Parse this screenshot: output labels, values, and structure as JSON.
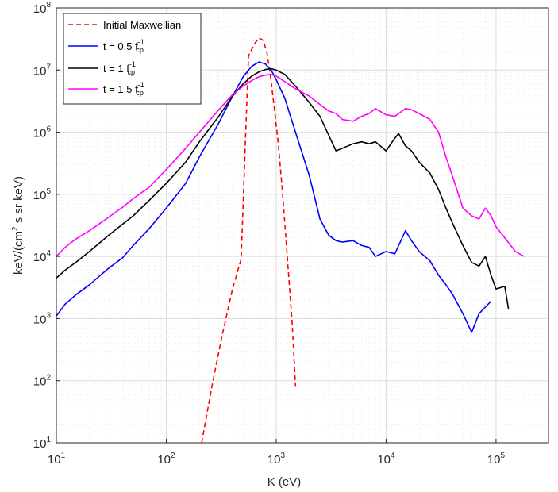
{
  "chart_data": {
    "type": "line",
    "xlabel": "K (eV)",
    "ylabel": {
      "pre": "keV/(cm",
      "sup": "2",
      "post": " s sr keV)"
    },
    "x_scale": "log",
    "y_scale": "log",
    "xlim": [
      10,
      300000
    ],
    "ylim": [
      10,
      100000000
    ],
    "x_ticks": [
      {
        "base": "10",
        "exp": "1",
        "value": 10
      },
      {
        "base": "10",
        "exp": "2",
        "value": 100
      },
      {
        "base": "10",
        "exp": "3",
        "value": 1000
      },
      {
        "base": "10",
        "exp": "4",
        "value": 10000
      },
      {
        "base": "10",
        "exp": "5",
        "value": 100000
      }
    ],
    "y_ticks": [
      {
        "base": "10",
        "exp": "1",
        "value": 10
      },
      {
        "base": "10",
        "exp": "2",
        "value": 100
      },
      {
        "base": "10",
        "exp": "3",
        "value": 1000
      },
      {
        "base": "10",
        "exp": "4",
        "value": 10000
      },
      {
        "base": "10",
        "exp": "5",
        "value": 100000
      },
      {
        "base": "10",
        "exp": "6",
        "value": 1000000
      },
      {
        "base": "10",
        "exp": "7",
        "value": 10000000
      },
      {
        "base": "10",
        "exp": "8",
        "value": 100000000
      }
    ],
    "grid": true,
    "minor_grid": true,
    "legend_position": "top-left",
    "series": [
      {
        "name": "Initial Maxwellian",
        "legend": {
          "main": "Initial Maxwellian",
          "sup": "",
          "sub": ""
        },
        "color": "#ff0000",
        "dash": true,
        "x": [
          210,
          260,
          320,
          400,
          480,
          560,
          640,
          700,
          760,
          820,
          880,
          960,
          1050,
          1150,
          1260,
          1400,
          1500
        ],
        "y": [
          10,
          80,
          500,
          3000,
          9000,
          17000000,
          27000000,
          33000000,
          30000000,
          20000000,
          9000000,
          2500000,
          600000,
          90000,
          10000,
          800,
          80
        ]
      },
      {
        "name": "t = 0.5 f_cp^-1",
        "legend": {
          "main": "t = 0.5 f",
          "sup": "-1",
          "sub": "cp"
        },
        "color": "#0000ff",
        "dash": false,
        "x": [
          10,
          12,
          15,
          20,
          30,
          40,
          50,
          70,
          100,
          150,
          200,
          300,
          400,
          500,
          600,
          700,
          800,
          900,
          1000,
          1200,
          1500,
          2000,
          2500,
          3000,
          3500,
          4000,
          5000,
          6000,
          7000,
          8000,
          10000,
          12000,
          15000,
          17000,
          20000,
          25000,
          30000,
          35000,
          40000,
          50000,
          60000,
          70000,
          90000
        ],
        "y": [
          1100,
          1700,
          2400,
          3500,
          6500,
          9500,
          15000,
          28000,
          60000,
          150000,
          400000,
          1400000,
          3800000,
          7800000,
          11500000,
          13500000,
          12500000,
          10000000,
          7000000,
          3500000,
          1000000,
          200000,
          40000,
          22000,
          18000,
          17000,
          18000,
          15000,
          14000,
          10000,
          12000,
          11000,
          26000,
          18000,
          12000,
          8500,
          5000,
          3500,
          2500,
          1200,
          600,
          1200,
          1900
        ]
      },
      {
        "name": "t = 1 f_cp^-1",
        "legend": {
          "main": "t = 1 f",
          "sup": "-1",
          "sub": "cp"
        },
        "color": "#000000",
        "dash": false,
        "x": [
          10,
          12,
          15,
          20,
          30,
          50,
          70,
          100,
          150,
          200,
          300,
          400,
          500,
          600,
          700,
          800,
          900,
          1000,
          1200,
          1500,
          2000,
          2500,
          3000,
          3500,
          4000,
          5000,
          6000,
          7000,
          8000,
          10000,
          12000,
          13000,
          15000,
          17000,
          20000,
          25000,
          30000,
          35000,
          40000,
          50000,
          60000,
          70000,
          80000,
          90000,
          100000,
          120000,
          130000
        ],
        "y": [
          4500,
          6000,
          8000,
          12000,
          22000,
          45000,
          80000,
          150000,
          330000,
          700000,
          1800000,
          3800000,
          6000000,
          8000000,
          9400000,
          10200000,
          10500000,
          10000000,
          8500000,
          5500000,
          3000000,
          1800000,
          900000,
          500000,
          550000,
          650000,
          700000,
          650000,
          700000,
          500000,
          800000,
          950000,
          600000,
          500000,
          330000,
          220000,
          120000,
          60000,
          35000,
          15000,
          8000,
          7000,
          10000,
          5000,
          3000,
          3300,
          1400
        ]
      },
      {
        "name": "t = 1.5 f_cp^-1",
        "legend": {
          "main": "t = 1.5 f",
          "sup": "-1",
          "sub": "cp"
        },
        "color": "#ff00ff",
        "dash": false,
        "x": [
          10,
          12,
          15,
          20,
          30,
          40,
          50,
          70,
          100,
          150,
          200,
          300,
          400,
          500,
          600,
          700,
          800,
          900,
          1000,
          1200,
          1500,
          2000,
          2500,
          3000,
          3500,
          4000,
          5000,
          6000,
          7000,
          8000,
          10000,
          12000,
          15000,
          17000,
          20000,
          25000,
          30000,
          35000,
          40000,
          50000,
          60000,
          70000,
          80000,
          90000,
          100000,
          120000,
          150000,
          180000
        ],
        "y": [
          10000,
          14000,
          19000,
          26000,
          43000,
          62000,
          85000,
          130000,
          250000,
          550000,
          1000000,
          2300000,
          4000000,
          5500000,
          6800000,
          7800000,
          8300000,
          8500000,
          8000000,
          6500000,
          5000000,
          3800000,
          2800000,
          2200000,
          2000000,
          1600000,
          1500000,
          1800000,
          2000000,
          2400000,
          1900000,
          1800000,
          2400000,
          2300000,
          2000000,
          1600000,
          1000000,
          400000,
          200000,
          60000,
          45000,
          40000,
          60000,
          45000,
          30000,
          20000,
          12000,
          10000
        ]
      }
    ]
  }
}
